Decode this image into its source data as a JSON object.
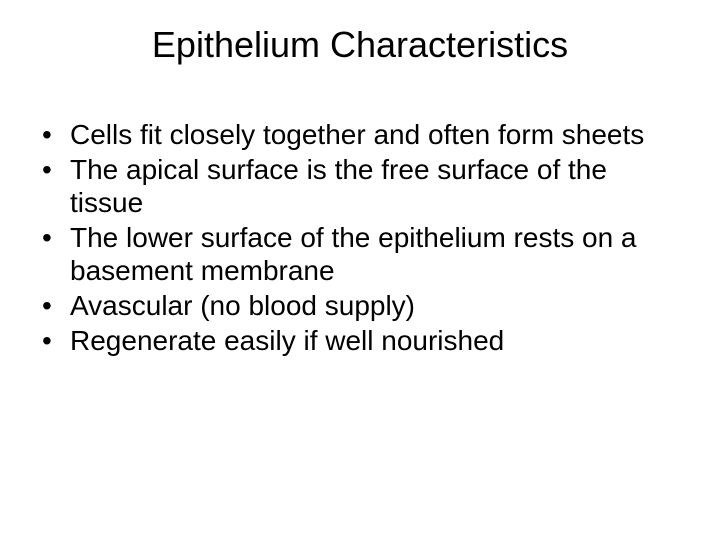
{
  "slide": {
    "title": "Epithelium Characteristics",
    "bullets": [
      "Cells fit closely together and often form sheets",
      "The apical surface is the free surface of the tissue",
      "The lower surface of the epithelium rests on a basement membrane",
      "Avascular (no blood supply)",
      "Regenerate easily if well nourished"
    ],
    "style": {
      "background_color": "#ffffff",
      "text_color": "#000000",
      "title_fontsize": 36,
      "body_fontsize": 28,
      "font_family": "Arial"
    }
  }
}
